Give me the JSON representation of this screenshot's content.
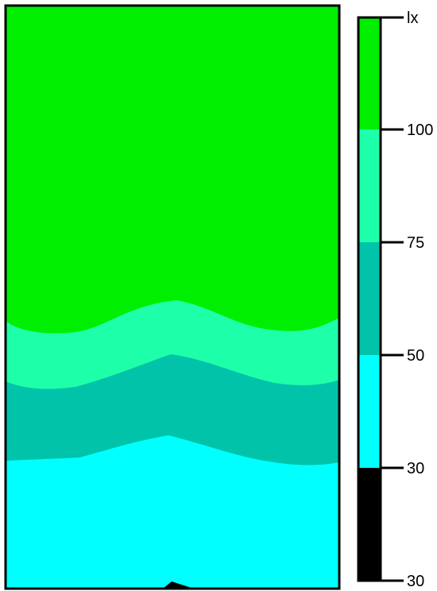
{
  "legend": {
    "unit": "lx",
    "labels": [
      "100",
      "75",
      "50",
      "30",
      "30"
    ],
    "bands": [
      {
        "label": "above 100",
        "color": "#00ee00"
      },
      {
        "label": "75-100",
        "color": "#1effaa"
      },
      {
        "label": "50-75",
        "color": "#00c3aa"
      },
      {
        "label": "30-50",
        "color": "#00ffff"
      },
      {
        "label": "below 30",
        "color": "#000000"
      }
    ]
  },
  "map": {
    "zones": [
      {
        "name": "zone-above-100",
        "color": "#00ee00"
      },
      {
        "name": "zone-75-100",
        "color": "#1effaa"
      },
      {
        "name": "zone-50-75",
        "color": "#00c3aa"
      },
      {
        "name": "zone-30-50",
        "color": "#00ffff"
      },
      {
        "name": "zone-below-30",
        "color": "#000000"
      }
    ]
  }
}
